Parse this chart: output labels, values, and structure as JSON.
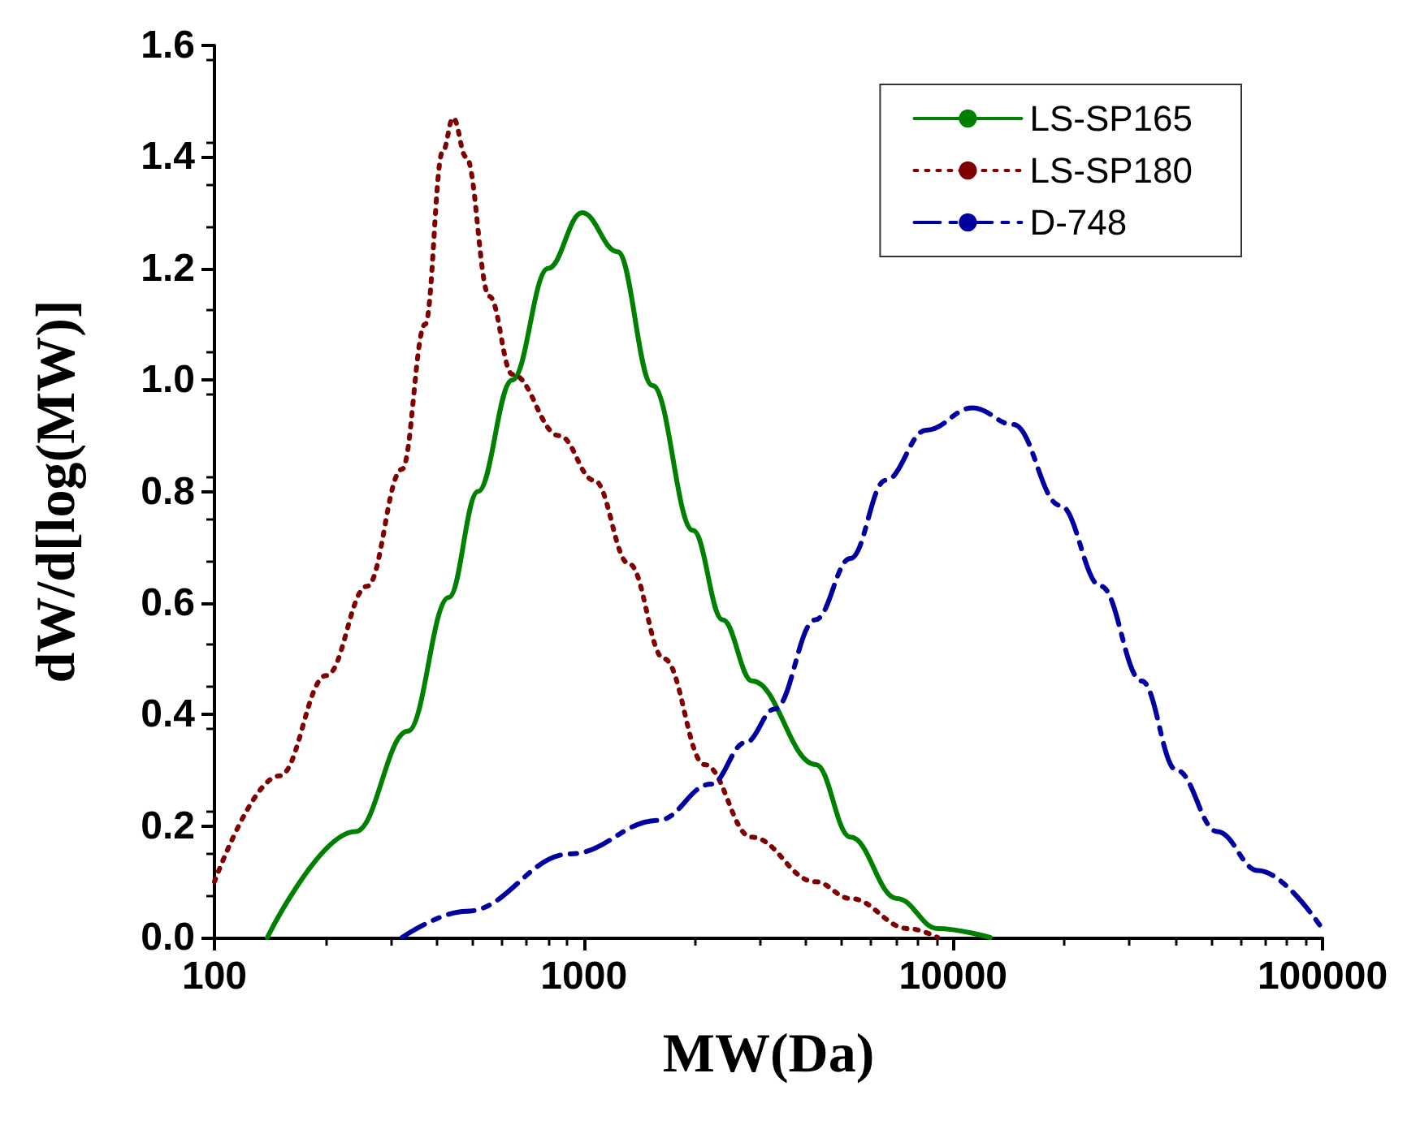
{
  "chart_data": {
    "type": "line",
    "xlabel": "MW(Da)",
    "ylabel": "dW/d[log(MW)]",
    "log": "x",
    "xlim": [
      100,
      100000
    ],
    "xticks": [
      100,
      1000,
      10000,
      100000
    ],
    "ylim": [
      0,
      1.6
    ],
    "yticks": [
      {
        "value": 0,
        "label": "0.0"
      },
      0.2,
      0.4,
      0.6,
      0.8,
      {
        "value": 1,
        "label": "1.0"
      },
      1.2,
      1.4,
      1.6
    ],
    "grid": false,
    "legend": "top right",
    "marker": "none",
    "series": [
      {
        "name": "LS-SP165",
        "color": "#008000",
        "line_style": "solid",
        "x": [
          139,
          241,
          334,
          431,
          517,
          640,
          800,
          990,
          1234,
          1535,
          1977,
          2376,
          2858,
          4246,
          5272,
          7047,
          9075,
          12600
        ],
        "values": [
          0,
          0.19,
          0.37,
          0.61,
          0.8,
          1.0,
          1.2,
          1.3,
          1.23,
          0.99,
          0.73,
          0.57,
          0.46,
          0.31,
          0.18,
          0.07,
          0.016,
          0
        ]
      },
      {
        "name": "LS-SP180",
        "color": "#800000",
        "line_style": "dotted",
        "x": [
          100,
          150,
          201,
          259,
          322,
          372,
          415,
          443,
          480,
          555,
          641,
          859,
          1067,
          1327,
          1649,
          2125,
          2844,
          4236,
          5272,
          7570,
          9080
        ],
        "values": [
          0.1,
          0.29,
          0.47,
          0.63,
          0.84,
          1.1,
          1.41,
          1.47,
          1.4,
          1.15,
          1.01,
          0.9,
          0.82,
          0.67,
          0.5,
          0.31,
          0.18,
          0.1,
          0.07,
          0.016,
          0
        ]
      },
      {
        "name": "D-748",
        "color": "#0000a0",
        "line_style": "dashdot",
        "x": [
          322,
          480,
          922,
          1592,
          2208,
          2744,
          3289,
          4236,
          5272,
          6561,
          8453,
          11300,
          14560,
          19490,
          25120,
          32400,
          40270,
          51900,
          66970,
          100000
        ],
        "values": [
          0,
          0.047,
          0.15,
          0.21,
          0.275,
          0.35,
          0.41,
          0.57,
          0.68,
          0.82,
          0.91,
          0.95,
          0.92,
          0.775,
          0.63,
          0.46,
          0.3,
          0.19,
          0.12,
          0.015
        ]
      }
    ]
  }
}
